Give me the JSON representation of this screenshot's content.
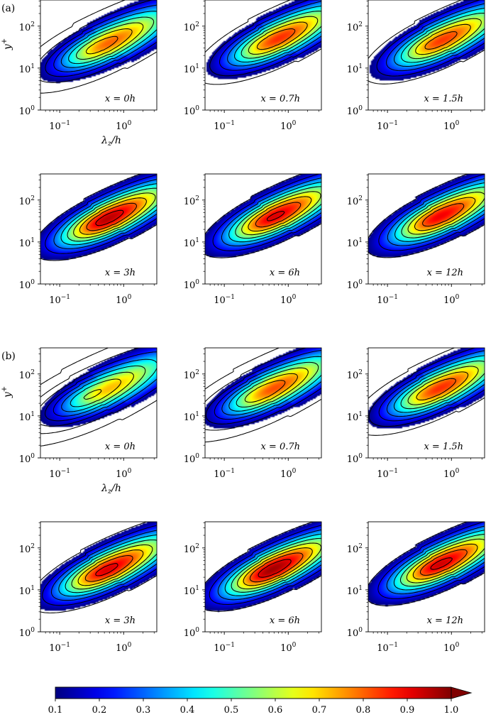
{
  "chart_data": {
    "type": "contour",
    "groups": [
      {
        "label": "(a)",
        "panels": [
          {
            "annotation": "x = 0h",
            "peak": 0.8,
            "center": [
              0.6,
              40
            ],
            "line_offset": 0.18
          },
          {
            "annotation": "x = 0.7h",
            "peak": 0.85,
            "center": [
              0.7,
              50
            ],
            "line_offset": 0.1
          },
          {
            "annotation": "x = 1.5h",
            "peak": 0.84,
            "center": [
              0.7,
              45
            ],
            "line_offset": 0.06
          },
          {
            "annotation": "x = 3h",
            "peak": 0.95,
            "center": [
              0.55,
              35
            ],
            "line_offset": 0.0
          },
          {
            "annotation": "x = 6h",
            "peak": 0.92,
            "center": [
              0.6,
              40
            ],
            "line_offset": 0.0
          },
          {
            "annotation": "x = 12h",
            "peak": 0.9,
            "center": [
              0.65,
              40
            ],
            "line_offset": 0.0
          }
        ]
      },
      {
        "label": "(b)",
        "panels": [
          {
            "annotation": "x = 0h",
            "peak": 0.72,
            "center": [
              0.6,
              45
            ],
            "line_offset": 0.32
          },
          {
            "annotation": "x = 0.7h",
            "peak": 0.82,
            "center": [
              0.6,
              45
            ],
            "line_offset": 0.22
          },
          {
            "annotation": "x = 1.5h",
            "peak": 0.85,
            "center": [
              0.65,
              45
            ],
            "line_offset": 0.12
          },
          {
            "annotation": "x = 3h",
            "peak": 0.92,
            "center": [
              0.55,
              30
            ],
            "line_offset": 0.04
          },
          {
            "annotation": "x = 6h",
            "peak": 0.97,
            "center": [
              0.55,
              30
            ],
            "line_offset": 0.0
          },
          {
            "annotation": "x = 12h",
            "peak": 0.93,
            "center": [
              0.65,
              40
            ],
            "line_offset": 0.0
          }
        ]
      }
    ],
    "xscale": "log",
    "yscale": "log",
    "xlim": [
      0.05,
      3.3
    ],
    "ylim": [
      1,
      420
    ],
    "x_ticks": [
      {
        "value": 0.1,
        "base": "10",
        "exp": "−1"
      },
      {
        "value": 1,
        "base": "10",
        "exp": "0"
      }
    ],
    "y_ticks": [
      {
        "value": 1,
        "base": "10",
        "exp": "0"
      },
      {
        "value": 10,
        "base": "10",
        "exp": "1"
      },
      {
        "value": 100,
        "base": "10",
        "exp": "2"
      }
    ],
    "xlabel_main": "λ",
    "xlabel_sub": "z",
    "xlabel_tail": "/h",
    "ylabel_main": "y",
    "ylabel_sup": "+",
    "colorbar": {
      "min": 0.1,
      "max": 1.0,
      "ticks": [
        "0.1",
        "0.2",
        "0.3",
        "0.4",
        "0.5",
        "0.6",
        "0.7",
        "0.8",
        "0.9",
        "1.0"
      ],
      "extend": "max",
      "colormap": "jet"
    },
    "contour_levels": [
      0.1,
      0.2,
      0.3,
      0.4,
      0.5,
      0.6,
      0.7,
      0.8,
      0.9
    ],
    "grid": false
  }
}
